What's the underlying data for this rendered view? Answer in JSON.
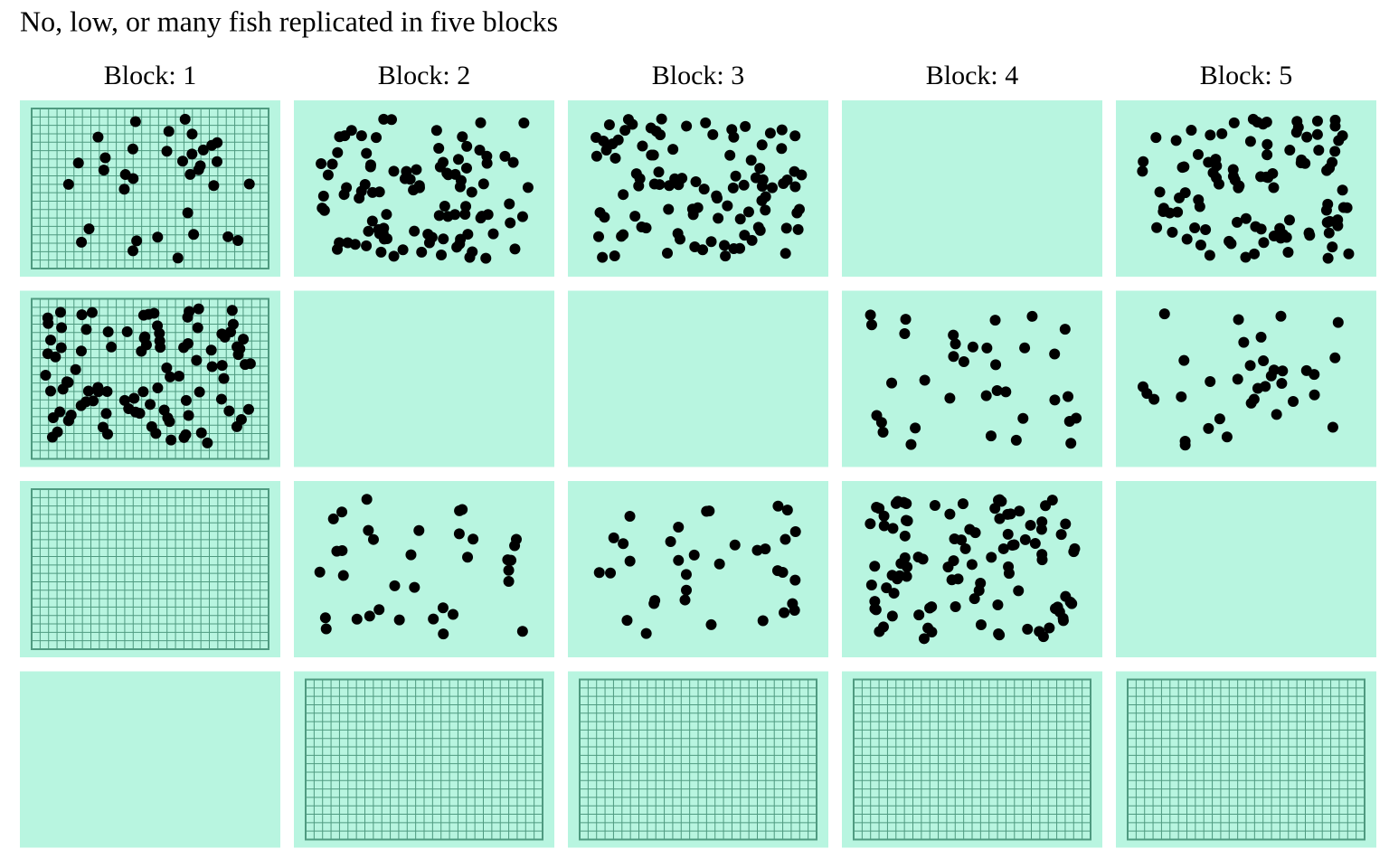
{
  "chart_data": {
    "type": "facet-dots",
    "title": "No, low, or many fish replicated in five blocks",
    "columns": [
      "Block: 1",
      "Block: 2",
      "Block: 3",
      "Block: 4",
      "Block: 5"
    ],
    "panel_color": "#b8f5e0",
    "dot_color": "#000000",
    "grid_color": "#4f9a80",
    "panels": [
      [
        {
          "fish": 35,
          "grid": true
        },
        {
          "fish": 100,
          "grid": false
        },
        {
          "fish": 100,
          "grid": false
        },
        {
          "fish": 0,
          "grid": false
        },
        {
          "fish": 100,
          "grid": false
        }
      ],
      [
        {
          "fish": 100,
          "grid": true
        },
        {
          "fish": 0,
          "grid": false
        },
        {
          "fish": 0,
          "grid": false
        },
        {
          "fish": 35,
          "grid": false
        },
        {
          "fish": 35,
          "grid": false
        }
      ],
      [
        {
          "fish": 0,
          "grid": true
        },
        {
          "fish": 35,
          "grid": false
        },
        {
          "fish": 35,
          "grid": false
        },
        {
          "fish": 100,
          "grid": false
        },
        {
          "fish": 0,
          "grid": false
        }
      ],
      [
        {
          "fish": 0,
          "grid": false
        },
        {
          "fish": 0,
          "grid": true
        },
        {
          "fish": 0,
          "grid": true
        },
        {
          "fish": 0,
          "grid": true
        },
        {
          "fish": 0,
          "grid": true
        }
      ]
    ]
  }
}
